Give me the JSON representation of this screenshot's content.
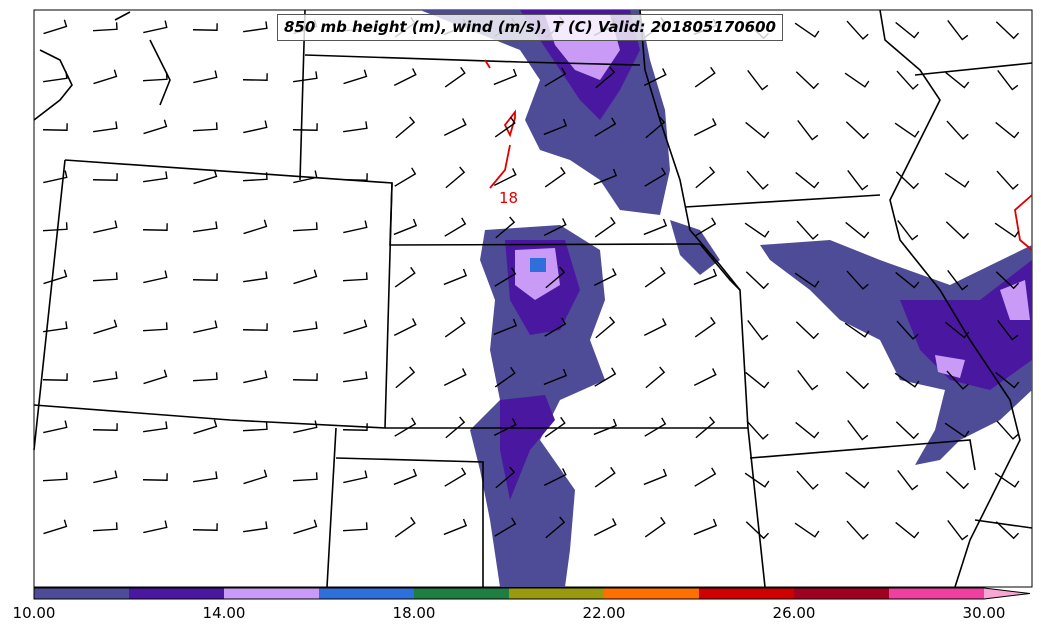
{
  "title": "850 mb height (m), wind (m/s), T (C) Valid: 201805170600",
  "contour_label": "18",
  "colorbar": {
    "ticks": [
      "10.00",
      "14.00",
      "18.00",
      "22.00",
      "26.00",
      "30.00"
    ],
    "bins": [
      {
        "from": 10,
        "to": 12,
        "color": "#4e4c96"
      },
      {
        "from": 12,
        "to": 14,
        "color": "#4a18a0"
      },
      {
        "from": 14,
        "to": 16,
        "color": "#c99bf7"
      },
      {
        "from": 16,
        "to": 18,
        "color": "#2f6fdb"
      },
      {
        "from": 18,
        "to": 20,
        "color": "#1f7f42"
      },
      {
        "from": 20,
        "to": 22,
        "color": "#9a9a0e"
      },
      {
        "from": 22,
        "to": 24,
        "color": "#ff7000"
      },
      {
        "from": 24,
        "to": 26,
        "color": "#d00000"
      },
      {
        "from": 26,
        "to": 28,
        "color": "#a00022"
      },
      {
        "from": 28,
        "to": 30,
        "color": "#f03f9f"
      }
    ],
    "extend_color": "#f8a6d2"
  }
}
